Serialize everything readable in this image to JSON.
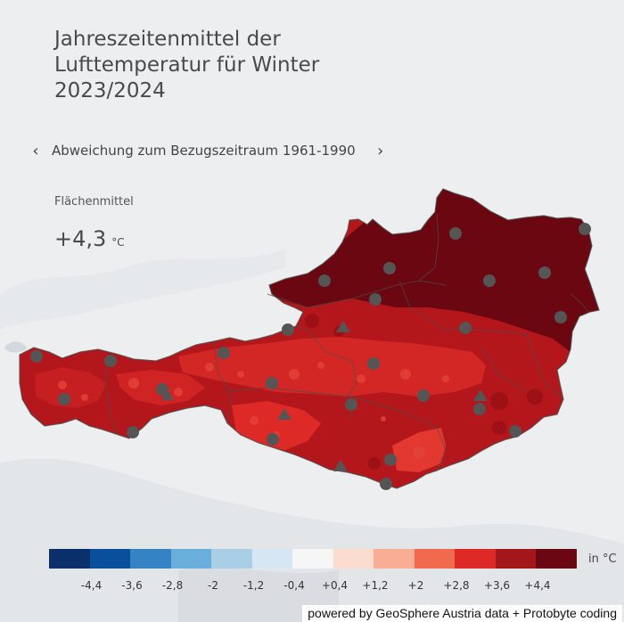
{
  "title_lines": [
    "Jahreszeitenmittel der",
    "Lufttemperatur für Winter",
    "2023/2024"
  ],
  "navigation": {
    "label": "Abweichung zum Bezugszeitraum 1961-1990",
    "prev_icon": "chevron-left-icon",
    "next_icon": "chevron-right-icon"
  },
  "area_mean": {
    "label": "Flächenmittel",
    "value": "+4,3",
    "unit": "°C"
  },
  "legend": {
    "unit": "in °C",
    "colors": [
      "#0a2f6b",
      "#0a4f9c",
      "#3583c5",
      "#6aaedb",
      "#a9cfe6",
      "#d6e6f3",
      "#f6f6f6",
      "#fcdccf",
      "#f9ad94",
      "#f26a4d",
      "#dd2a26",
      "#a31619",
      "#6b0710"
    ],
    "tick_labels": [
      "-4,4",
      "-3,6",
      "-2,8",
      "-2",
      "-1,2",
      "-0,4",
      "+0,4",
      "+1,2",
      "+2",
      "+2,8",
      "+3,6",
      "+4,4"
    ]
  },
  "credit": "powered by GeoSphere Austria data + Protobyte coding"
}
